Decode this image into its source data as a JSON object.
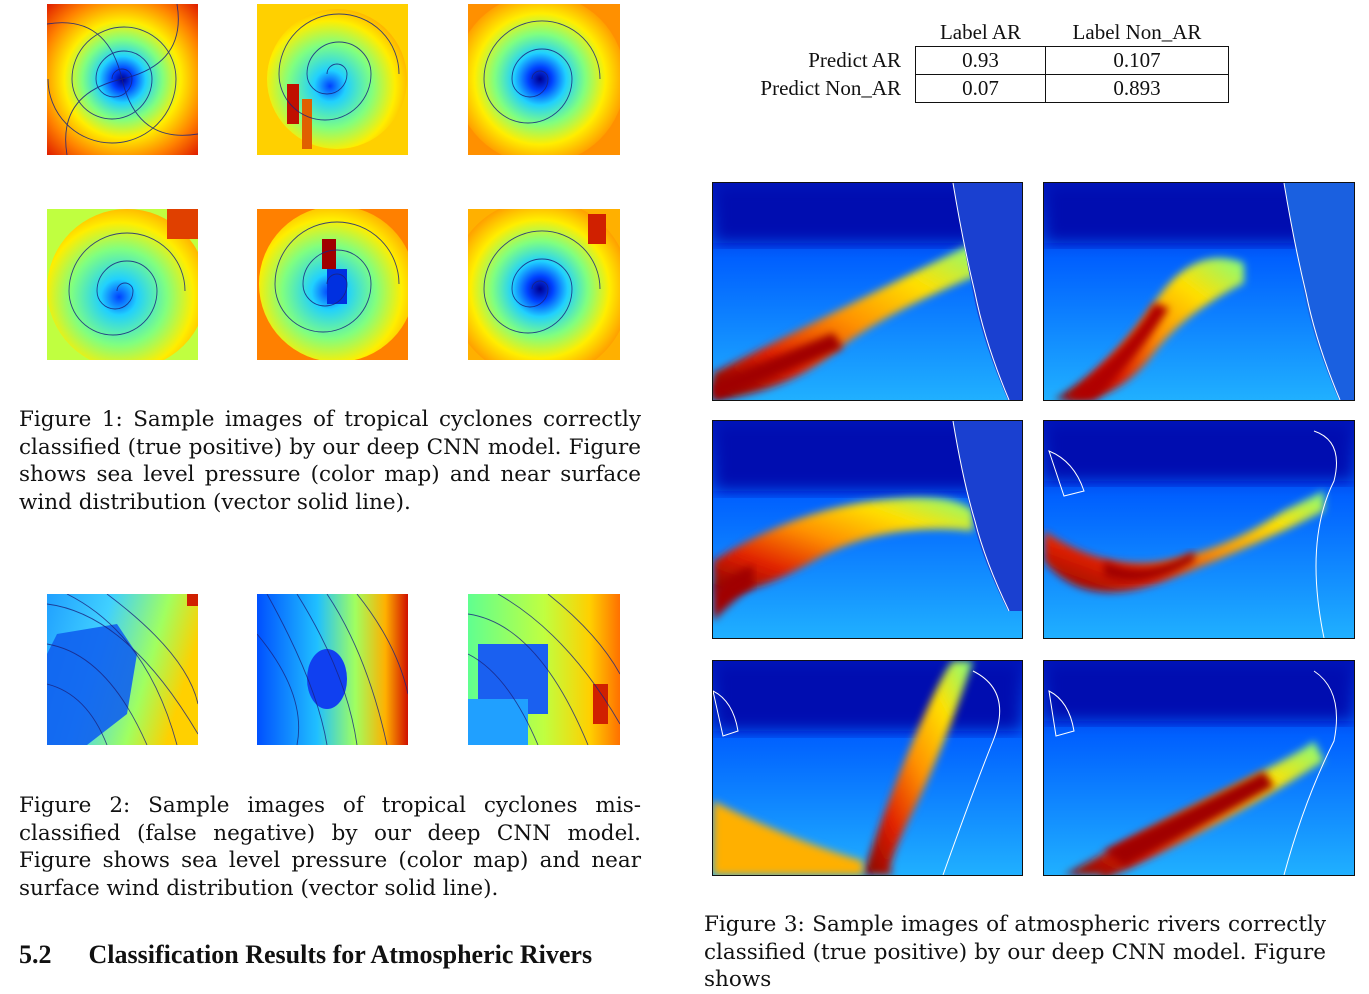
{
  "confusion_table": {
    "col_headers": [
      "Label AR",
      "Label Non_AR"
    ],
    "rows": [
      {
        "label": "Predict AR",
        "values": [
          "0.93",
          "0.107"
        ]
      },
      {
        "label": "Predict Non_AR",
        "values": [
          "0.07",
          "0.893"
        ]
      }
    ]
  },
  "captions": {
    "fig1": "Figure 1: Sample images of tropical cyclones correctly classified (true positive) by our deep CNN model. Figure shows sea level pressure (color map) and near surface wind distribution (vector solid line).",
    "fig2": "Figure 2: Sample images of tropical cyclones mis-classified (false negative) by our deep CNN model. Figure shows sea level pressure (color map) and near surface wind distribution (vector solid line).",
    "fig3": "Figure 3: Sample images of atmospheric rivers correctly classified (true positive) by our deep CNN model. Figure shows"
  },
  "section_heading": {
    "number": "5.2",
    "title": "Classification Results for Atmospheric Rivers"
  },
  "colors": {
    "jet_dark_blue": "#00008f",
    "jet_blue": "#0040ff",
    "jet_cyan": "#20d0ff",
    "jet_green": "#80ff80",
    "jet_yellow": "#ffee00",
    "jet_orange": "#ff8000",
    "jet_red": "#e01000",
    "jet_dark_red": "#8f0000",
    "streamline": "#1a237e"
  }
}
